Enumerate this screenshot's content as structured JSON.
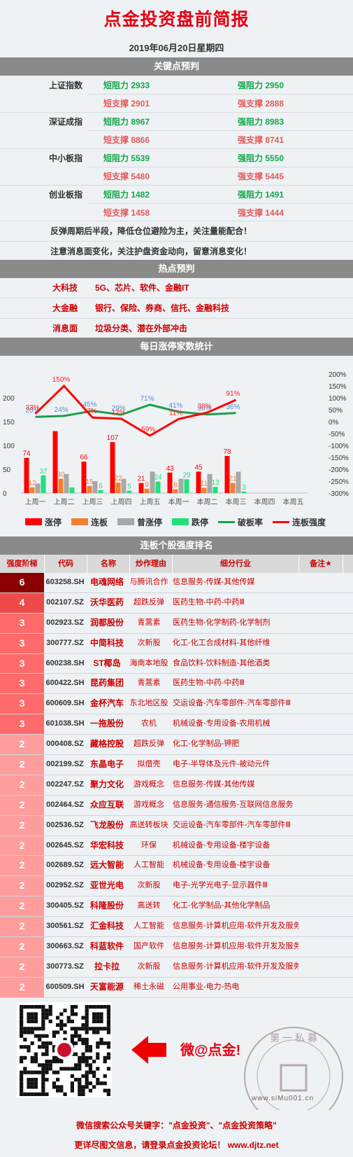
{
  "title": "点金投资盘前简报",
  "date": "2019年06月20日星期四",
  "sections": {
    "key_points": "关键点预判",
    "hot": "热点预判",
    "daily_stats": "每日涨停家数统计",
    "ranking": "连板个股强度排名"
  },
  "key_points": [
    {
      "index": "上证指数",
      "short_res": "短阻力 2933",
      "strong_res": "强阻力 2950",
      "short_sup": "短支撑 2901",
      "strong_sup": "强支撑 2888"
    },
    {
      "index": "深证成指",
      "short_res": "短阻力 8967",
      "strong_res": "强阻力 8983",
      "short_sup": "短支撑 8866",
      "strong_sup": "强支撑 8741"
    },
    {
      "index": "中小板指",
      "short_res": "短阻力 5539",
      "strong_res": "强阻力 5550",
      "short_sup": "短支撑 5480",
      "strong_sup": "强支撑 5445"
    },
    {
      "index": "创业板指",
      "short_res": "短阻力 1482",
      "strong_res": "强阻力 1491",
      "short_sup": "短支撑 1458",
      "strong_sup": "强支撑 1444"
    }
  ],
  "notes": [
    "反弹周期后半段，降低仓位避险为主，关注量能配合！",
    "注意消息面变化，关注护盘资金动向，留意消息变化！"
  ],
  "hot": [
    {
      "key": "大科技",
      "value": "5G、芯片、软件、金融IT"
    },
    {
      "key": "大金融",
      "value": "银行、保险、券商、信托、金融科技"
    },
    {
      "key": "消息面",
      "value": "垃圾分类、潜在外部冲击"
    }
  ],
  "chart_data": {
    "type": "bar",
    "categories": [
      "上周一",
      "上周二",
      "上周三",
      "上周四",
      "上周五",
      "本周一",
      "本周二",
      "本周三",
      "本周四",
      "本周五"
    ],
    "series": [
      {
        "name": "涨停",
        "values": [
          74,
          130,
          66,
          107,
          21,
          43,
          45,
          78,
          null,
          null
        ],
        "color": "#ff0000"
      },
      {
        "name": "连板",
        "values": [
          12,
          30,
          15,
          22,
          9,
          8,
          11,
          21,
          null,
          null
        ],
        "color": "#f08030"
      },
      {
        "name": "曾涨停",
        "values": [
          20,
          40,
          25,
          30,
          45,
          30,
          40,
          45,
          null,
          null
        ],
        "color": "#a8a8a8"
      },
      {
        "name": "跌停",
        "values": [
          37,
          12,
          6,
          5,
          24,
          29,
          13,
          3,
          null,
          null
        ],
        "color": "#22e07a"
      },
      {
        "name": "破板率",
        "values": [
          20,
          24,
          45,
          29,
          71,
          41,
          30,
          36,
          null,
          null
        ],
        "color": "#1aa04a",
        "axis": "right"
      },
      {
        "name": "连板强度",
        "values": [
          33,
          150,
          17,
          12,
          -59,
          11,
          38,
          91,
          null,
          null
        ],
        "color": "#ff0000",
        "axis": "right"
      }
    ],
    "bar_labels": {
      "涨停": [
        "74",
        "",
        "66",
        "107",
        "21",
        "43",
        "45",
        "78"
      ],
      "连板": [
        "12",
        "30",
        "15",
        "22",
        "9",
        "8",
        "11",
        "21"
      ],
      "跌停": [
        "37",
        "",
        "6",
        "5",
        "24",
        "29",
        "13",
        "3"
      ],
      "破板率": [
        "20%",
        "24%",
        "45%",
        "29%",
        "71%",
        "41%",
        "30%",
        "36%"
      ],
      "连板强度": [
        "33%",
        "150%",
        "17%",
        "12%",
        "-59%",
        "11%",
        "38%",
        "91%"
      ]
    },
    "left_ticks": [
      "200",
      "150",
      "100",
      "50",
      "0"
    ],
    "right_ticks": [
      "200%",
      "150%",
      "100%",
      "50%",
      "0%",
      "-50%",
      "-100%",
      "-150%",
      "-200%",
      "-250%",
      "-300%"
    ],
    "ylim_left": [
      0,
      200
    ],
    "ylim_right": [
      -300,
      200
    ]
  },
  "table": {
    "headers": [
      "强度阶梯",
      "代码",
      "名称",
      "炒作理由",
      "细分行业",
      "备注★"
    ],
    "rows": [
      {
        "level": "6",
        "code": "603258.SH",
        "name": "电魂网络",
        "reason": "与腾讯合作",
        "industry": "信息服务-传媒-其他传媒"
      },
      {
        "level": "4",
        "code": "002107.SZ",
        "name": "沃华医药",
        "reason": "超跌反弹",
        "industry": "医药生物-中药-中药Ⅲ"
      },
      {
        "level": "3",
        "code": "002923.SZ",
        "name": "润都股份",
        "reason": "青蒿素",
        "industry": "医药生物-化学制药-化学制剂"
      },
      {
        "level": "3",
        "code": "300777.SZ",
        "name": "中简科技",
        "reason": "次新股",
        "industry": "化工-化工合成材料-其他纤维"
      },
      {
        "level": "3",
        "code": "600238.SH",
        "name": "ST椰岛",
        "reason": "海南本地股",
        "industry": "食品饮料-饮料制造-其他酒类"
      },
      {
        "level": "3",
        "code": "600422.SH",
        "name": "昆药集团",
        "reason": "青蒿素",
        "industry": "医药生物-中药-中药Ⅲ"
      },
      {
        "level": "3",
        "code": "600609.SH",
        "name": "金杯汽车",
        "reason": "东北地区股",
        "industry": "交运设备-汽车零部件-汽车零部件Ⅲ"
      },
      {
        "level": "3",
        "code": "601038.SH",
        "name": "一拖股份",
        "reason": "农机",
        "industry": "机械设备-专用设备-农用机械"
      },
      {
        "level": "2",
        "code": "000408.SZ",
        "name": "藏格控股",
        "reason": "超跌反弹",
        "industry": "化工-化学制品-钾肥"
      },
      {
        "level": "2",
        "code": "002199.SZ",
        "name": "东晶电子",
        "reason": "拟借壳",
        "industry": "电子-半导体及元件-被动元件"
      },
      {
        "level": "2",
        "code": "002247.SZ",
        "name": "聚力文化",
        "reason": "游戏概念",
        "industry": "信息服务-传媒-其他传媒"
      },
      {
        "level": "2",
        "code": "002464.SZ",
        "name": "众应互联",
        "reason": "游戏概念",
        "industry": "信息服务-通信服务-互联网信息服务"
      },
      {
        "level": "2",
        "code": "002536.SZ",
        "name": "飞龙股份",
        "reason": "高送转板块",
        "industry": "交运设备-汽车零部件-汽车零部件Ⅲ"
      },
      {
        "level": "2",
        "code": "002645.SZ",
        "name": "华宏科技",
        "reason": "环保",
        "industry": "机械设备-专用设备-楼宇设备"
      },
      {
        "level": "2",
        "code": "002689.SZ",
        "name": "远大智能",
        "reason": "人工智能",
        "industry": "机械设备-专用设备-楼宇设备"
      },
      {
        "level": "2",
        "code": "002952.SZ",
        "name": "亚世光电",
        "reason": "次新股",
        "industry": "电子-光学光电子-显示器件Ⅲ"
      },
      {
        "level": "2",
        "code": "300405.SZ",
        "name": "科隆股份",
        "reason": "高送转",
        "industry": "化工-化学制品-其他化学制品"
      },
      {
        "level": "2",
        "code": "300561.SZ",
        "name": "汇金科技",
        "reason": "人工智能",
        "industry": "信息服务-计算机应用-软件开发及服务"
      },
      {
        "level": "2",
        "code": "300663.SZ",
        "name": "科蓝软件",
        "reason": "国产软件",
        "industry": "信息服务-计算机应用-软件开发及服务"
      },
      {
        "level": "2",
        "code": "300773.SZ",
        "name": "拉卡拉",
        "reason": "次新股",
        "industry": "信息服务-计算机应用-软件开发及服务"
      },
      {
        "level": "2",
        "code": "600509.SH",
        "name": "天富能源",
        "reason": "稀土永磁",
        "industry": "公用事业-电力-热电"
      }
    ],
    "level_colors": {
      "6": "#8b0000",
      "4": "#ee4a4a",
      "3": "#ff6a6a",
      "2": "#ff9d9d"
    }
  },
  "footer": {
    "weibo": "微@点金!",
    "search_line": "微信搜索公众号关键字：\"点金投资\"、\"点金投资策略\"",
    "more_line": "更详尽图文信息，请登录点金投资论坛！ www.djtz.net",
    "stamp_top": "第 一 私 募",
    "stamp_bottom": "www.siMu001.cn"
  }
}
